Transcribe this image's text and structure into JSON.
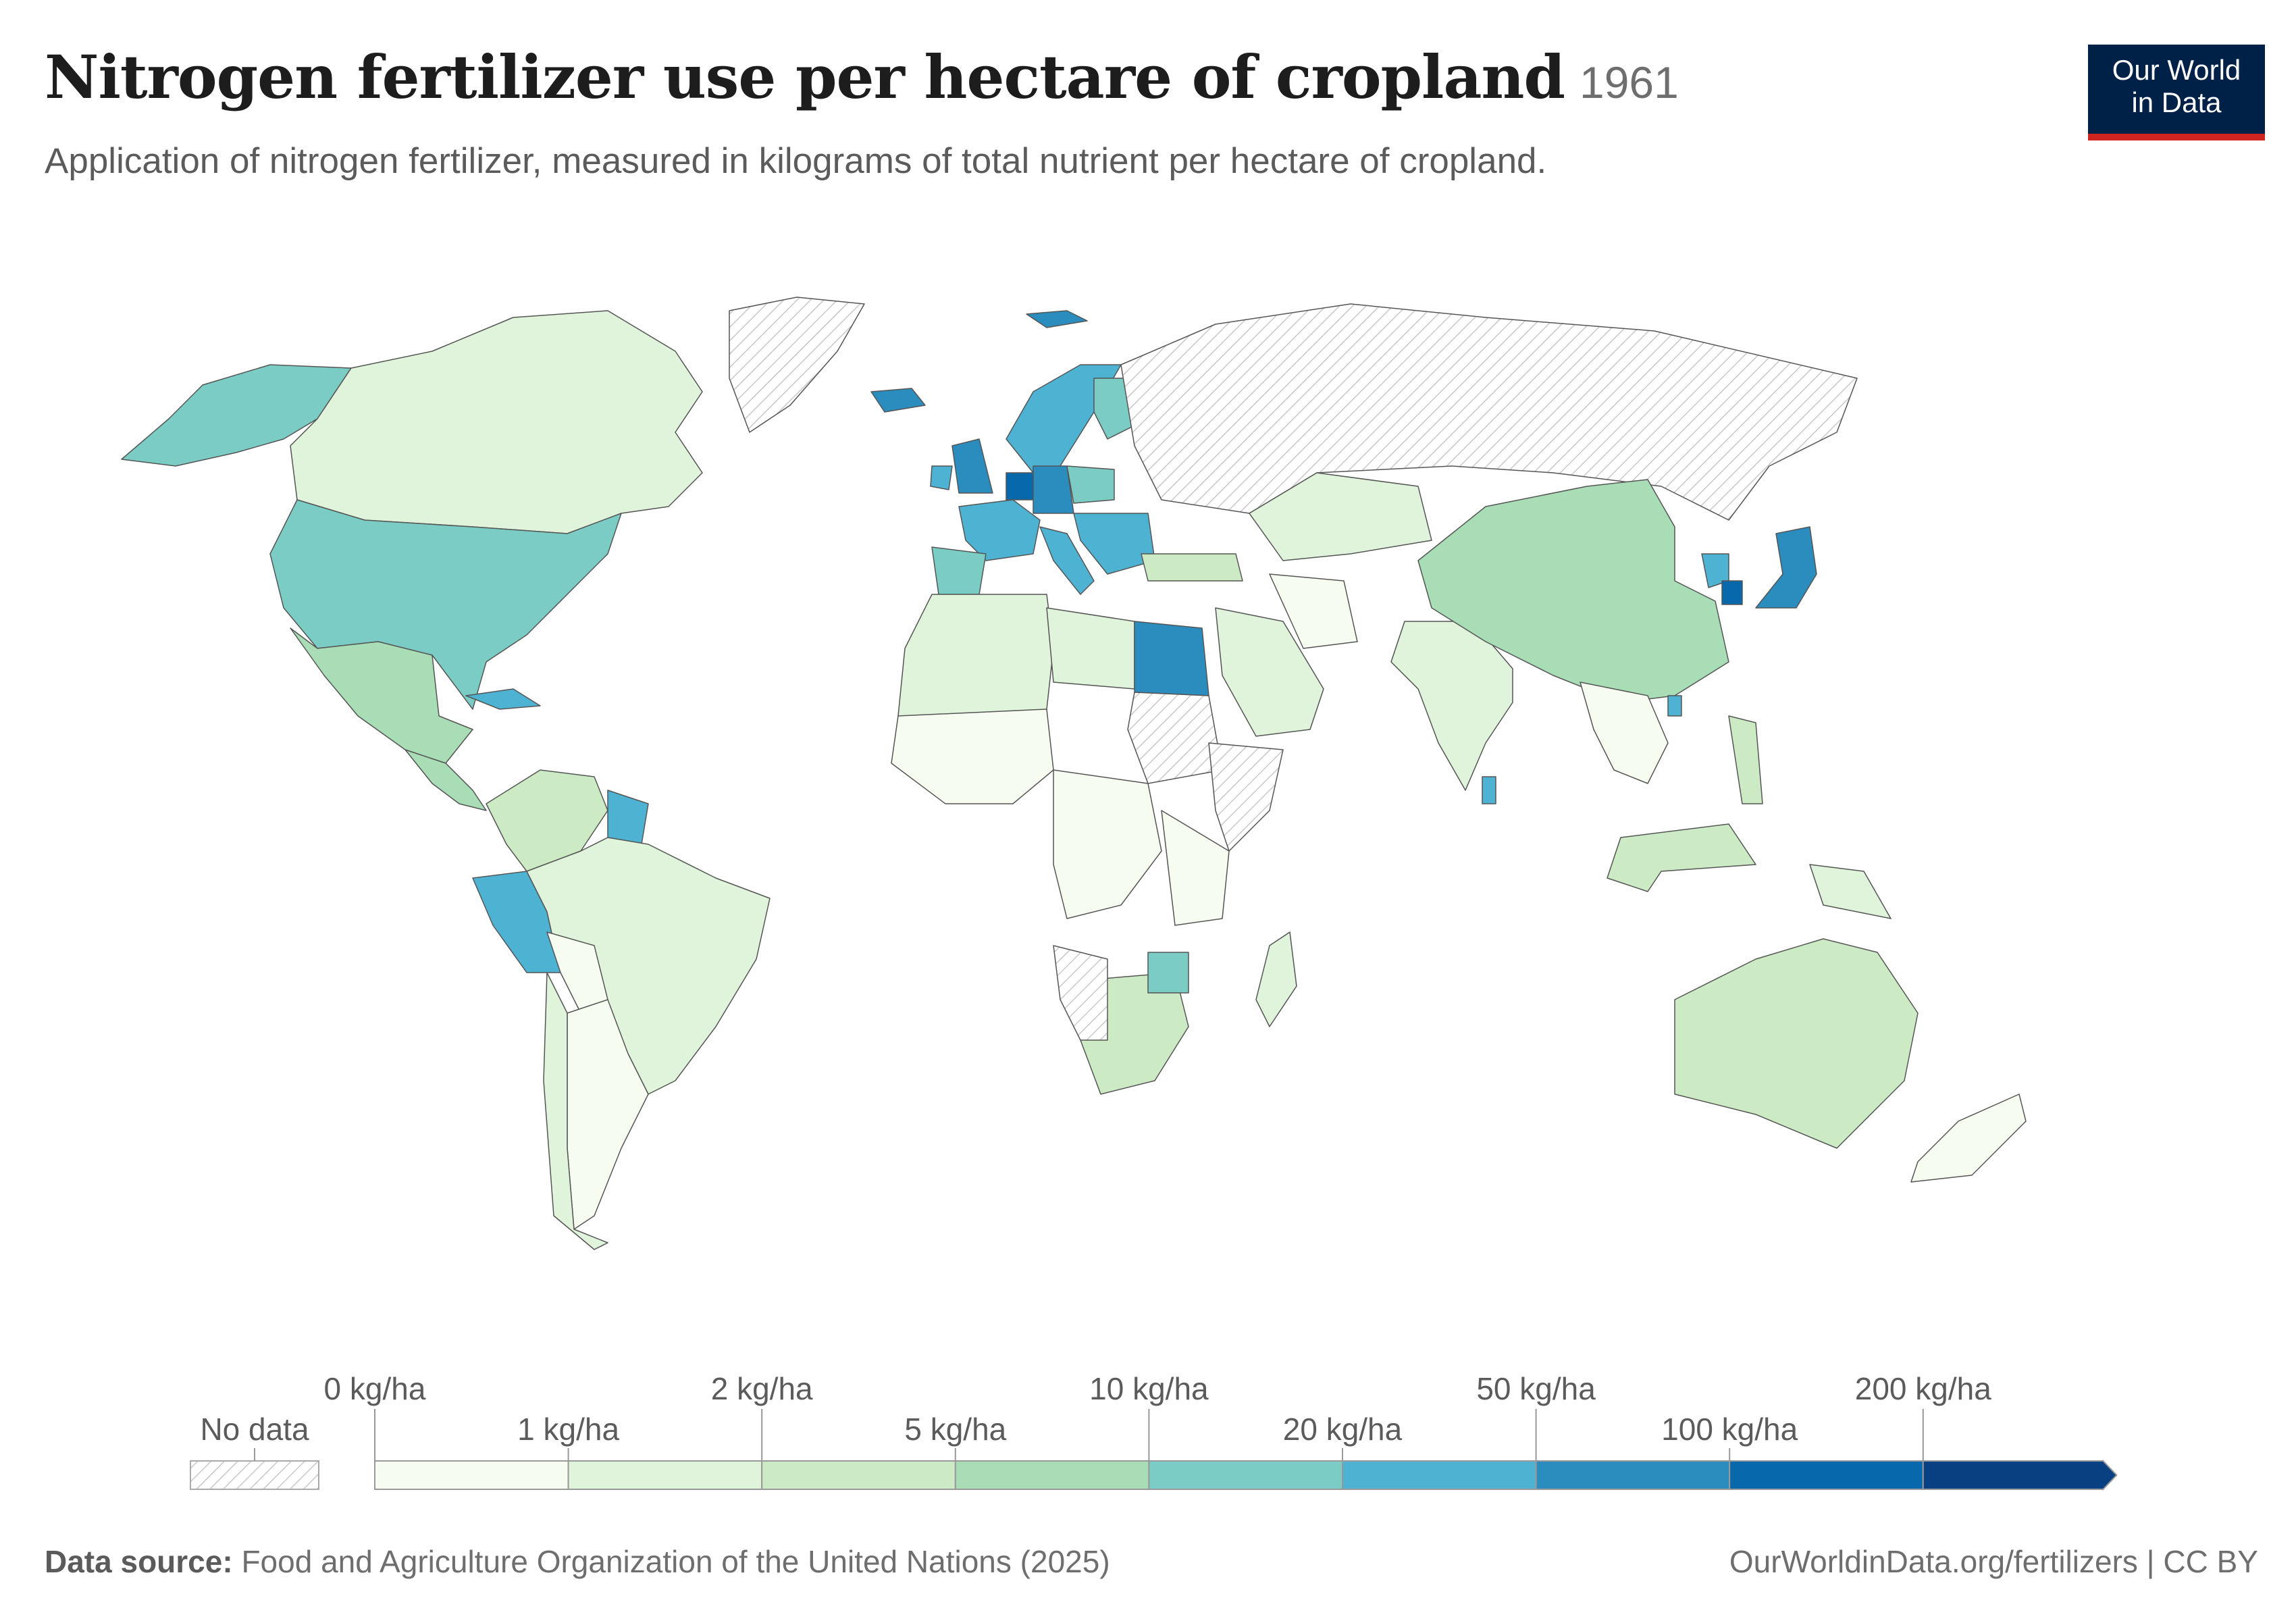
{
  "header": {
    "title": "Nitrogen fertilizer use per hectare of cropland",
    "year": "1961",
    "subtitle": "Application of nitrogen fertilizer, measured in kilograms of total nutrient per hectare of cropland."
  },
  "logo": {
    "line1": "Our World",
    "line2": "in Data",
    "bg_color": "#002147",
    "accent_color": "#ce261e"
  },
  "legend": {
    "no_data_label": "No data",
    "bins": [
      {
        "label": "0 kg/ha",
        "color": "#f7fcf0"
      },
      {
        "label": "1 kg/ha",
        "color": "#e0f3db"
      },
      {
        "label": "2 kg/ha",
        "color": "#ccebc5"
      },
      {
        "label": "5 kg/ha",
        "color": "#a8ddb5"
      },
      {
        "label": "10 kg/ha",
        "color": "#7bccc4"
      },
      {
        "label": "20 kg/ha",
        "color": "#4eb3d3"
      },
      {
        "label": "50 kg/ha",
        "color": "#2b8cbe"
      },
      {
        "label": "100 kg/ha",
        "color": "#0868ac"
      },
      {
        "label": "200 kg/ha",
        "color": "#084081"
      }
    ]
  },
  "regions": [
    {
      "name": "Alaska",
      "bin": 4
    },
    {
      "name": "Canada",
      "bin": 1
    },
    {
      "name": "United States",
      "bin": 4
    },
    {
      "name": "Mexico",
      "bin": 3
    },
    {
      "name": "Central America",
      "bin": 3
    },
    {
      "name": "Cuba",
      "bin": 5
    },
    {
      "name": "Northern South America",
      "bin": 2
    },
    {
      "name": "Guianas",
      "bin": 5
    },
    {
      "name": "Peru",
      "bin": 5
    },
    {
      "name": "Brazil",
      "bin": 1
    },
    {
      "name": "Bolivia",
      "bin": 0
    },
    {
      "name": "Argentina",
      "bin": 0
    },
    {
      "name": "Chile",
      "bin": 1
    },
    {
      "name": "Greenland",
      "bin": -1
    },
    {
      "name": "Iceland",
      "bin": 6
    },
    {
      "name": "Svalbard",
      "bin": 6
    },
    {
      "name": "Norway-Sweden",
      "bin": 5
    },
    {
      "name": "Finland",
      "bin": 4
    },
    {
      "name": "United Kingdom",
      "bin": 6
    },
    {
      "name": "Ireland",
      "bin": 5
    },
    {
      "name": "Western Europe",
      "bin": 7
    },
    {
      "name": "Germany",
      "bin": 6
    },
    {
      "name": "Poland",
      "bin": 4
    },
    {
      "name": "France",
      "bin": 5
    },
    {
      "name": "Iberia",
      "bin": 4
    },
    {
      "name": "Italy",
      "bin": 5
    },
    {
      "name": "Balkans",
      "bin": 5
    },
    {
      "name": "Turkey",
      "bin": 2
    },
    {
      "name": "Russia",
      "bin": -1
    },
    {
      "name": "North Africa",
      "bin": 1
    },
    {
      "name": "Libya",
      "bin": 1
    },
    {
      "name": "Egypt",
      "bin": 6
    },
    {
      "name": "Sudan",
      "bin": -1
    },
    {
      "name": "West Africa",
      "bin": 0
    },
    {
      "name": "Central Africa",
      "bin": 0
    },
    {
      "name": "Horn of Africa",
      "bin": -1
    },
    {
      "name": "East Africa",
      "bin": 0
    },
    {
      "name": "Southern Africa",
      "bin": 2
    },
    {
      "name": "Zimbabwe",
      "bin": 4
    },
    {
      "name": "Namibia",
      "bin": -1
    },
    {
      "name": "Madagascar",
      "bin": 1
    },
    {
      "name": "Arabia",
      "bin": 1
    },
    {
      "name": "Iran",
      "bin": 0
    },
    {
      "name": "Central Asia",
      "bin": 1
    },
    {
      "name": "India",
      "bin": 1
    },
    {
      "name": "Sri Lanka",
      "bin": 5
    },
    {
      "name": "China",
      "bin": 3
    },
    {
      "name": "Korea",
      "bin": 5
    },
    {
      "name": "South Korea",
      "bin": 7
    },
    {
      "name": "Japan",
      "bin": 6
    },
    {
      "name": "Taiwan",
      "bin": 5
    },
    {
      "name": "Southeast Asia",
      "bin": 0
    },
    {
      "name": "Philippines",
      "bin": 2
    },
    {
      "name": "Indonesia",
      "bin": 2
    },
    {
      "name": "Australia",
      "bin": 2
    },
    {
      "name": "New Zealand",
      "bin": 0
    },
    {
      "name": "Papua New Guinea",
      "bin": 1
    }
  ],
  "footer": {
    "source_label": "Data source:",
    "source_text": "Food and Agriculture Organization of the United Nations (2025)",
    "credit": "OurWorldinData.org/fertilizers | CC BY"
  }
}
